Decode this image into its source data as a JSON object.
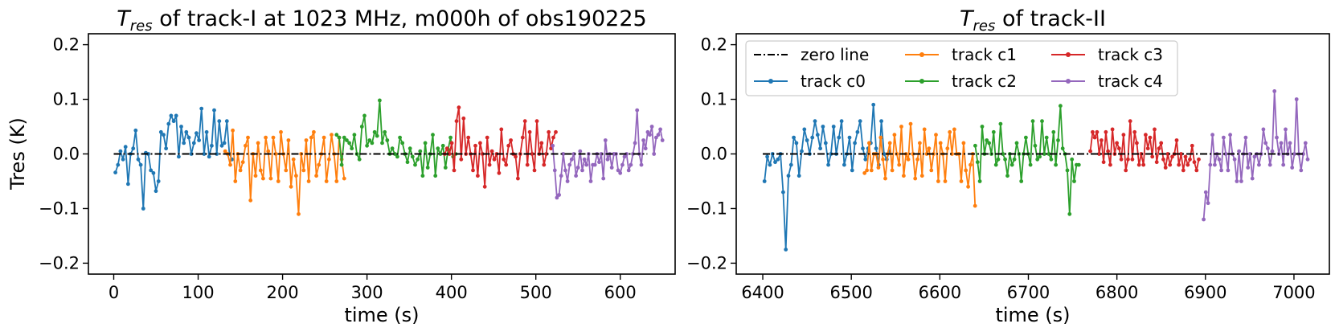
{
  "chart_data": [
    {
      "type": "line",
      "title_symbol": "T",
      "title_sub": "res",
      "title_rest": " of track-I at 1023 MHz, m000h of obs190225",
      "xlabel": "time (s)",
      "ylabel": "Tres (K)",
      "xlim": [
        -30,
        665
      ],
      "ylim": [
        -0.22,
        0.22
      ],
      "xticks": [
        0,
        100,
        200,
        300,
        400,
        500,
        600
      ],
      "xtick_labels": [
        "0",
        "100",
        "200",
        "300",
        "400",
        "500",
        "600"
      ],
      "yticks": [
        -0.2,
        -0.1,
        0.0,
        0.1,
        0.2
      ],
      "ytick_labels": [
        "−0.2",
        "−0.1",
        "0.0",
        "0.1",
        "0.2"
      ],
      "zero_line": {
        "name": "zero line",
        "x": [
          0,
          632
        ],
        "y": [
          0,
          0
        ]
      },
      "series": [
        {
          "name": "track c0",
          "color": "#1f77b4",
          "x0": 2,
          "dx": 3,
          "y": [
            -0.034,
            -0.02,
            0.005,
            -0.01,
            0.013,
            -0.055,
            0.0,
            0.01,
            0.043,
            -0.01,
            -0.02,
            -0.1,
            0.002,
            0.0,
            -0.03,
            -0.035,
            -0.068,
            -0.05,
            0.04,
            0.035,
            0.01,
            0.055,
            0.07,
            0.06,
            0.07,
            -0.005,
            0.05,
            0.02,
            0.04,
            0.03,
            0.0,
            0.02,
            0.038,
            0.025,
            0.083,
            0.0,
            0.04,
            -0.005,
            0.015,
            0.08,
            0.0,
            0.06,
            0.015,
            0.02,
            0.06,
            0.0,
            -0.01
          ]
        },
        {
          "name": "track c1",
          "color": "#ff7f0e",
          "x0": 132,
          "dx": 3,
          "y": [
            0.005,
            0.0,
            -0.02,
            0.043,
            -0.05,
            0.0,
            -0.03,
            -0.015,
            0.015,
            0.03,
            -0.085,
            0.0,
            -0.04,
            0.02,
            -0.03,
            -0.045,
            0.03,
            0.005,
            -0.045,
            0.03,
            0.0,
            -0.05,
            0.04,
            0.0,
            -0.03,
            0.025,
            -0.06,
            -0.01,
            -0.04,
            -0.11,
            0.0,
            -0.03,
            0.025,
            -0.05,
            0.03,
            0.04,
            -0.04,
            -0.02,
            0.0,
            0.03,
            -0.05,
            -0.01,
            0.035,
            0.0,
            -0.05,
            0.03,
            -0.01,
            -0.045
          ]
        },
        {
          "name": "track c2",
          "color": "#2ca02c",
          "x0": 264,
          "dx": 3,
          "y": [
            0.035,
            0.03,
            -0.02,
            0.03,
            0.025,
            0.02,
            0.01,
            0.035,
            0.0,
            -0.01,
            0.05,
            0.07,
            0.015,
            0.025,
            0.02,
            0.04,
            0.033,
            0.098,
            0.02,
            0.04,
            0.025,
            0.0,
            0.01,
            0.0,
            -0.005,
            0.03,
            0.02,
            0.0,
            -0.015,
            0.01,
            -0.005,
            -0.02,
            -0.01,
            0.005,
            -0.04,
            0.02,
            -0.025,
            0.0,
            0.035,
            -0.04,
            0.01,
            0.0,
            0.015,
            -0.025,
            0.008,
            0.03,
            -0.005,
            0.0
          ]
        },
        {
          "name": "track c3",
          "color": "#d62728",
          "x0": 392,
          "dx": 2.8,
          "y": [
            0.0,
            0.01,
            0.0,
            0.02,
            -0.03,
            0.06,
            0.085,
            -0.01,
            0.065,
            0.0,
            0.03,
            0.0,
            -0.03,
            0.015,
            -0.04,
            0.02,
            0.0,
            -0.06,
            0.03,
            -0.02,
            0.005,
            -0.01,
            0.0,
            -0.035,
            0.045,
            -0.01,
            -0.02,
            0.015,
            0.025,
            0.0,
            -0.005,
            -0.045,
            0.0,
            0.03,
            0.06,
            -0.02,
            0.04,
            0.0,
            -0.03,
            0.06,
            0.0,
            0.02,
            -0.02,
            0.0,
            0.04,
            0.01,
            0.03,
            0.04
          ]
        },
        {
          "name": "track c4",
          "color": "#9467bd",
          "x0": 520,
          "dx": 2.5,
          "y": [
            0.015,
            -0.03,
            -0.08,
            -0.075,
            -0.04,
            0.0,
            -0.03,
            -0.05,
            -0.02,
            -0.01,
            0.0,
            -0.04,
            -0.025,
            0.005,
            -0.03,
            -0.01,
            -0.02,
            0.0,
            -0.05,
            -0.02,
            -0.02,
            0.0,
            -0.015,
            0.0,
            -0.045,
            0.025,
            -0.01,
            0.0,
            -0.025,
            0.0,
            0.0,
            -0.03,
            -0.035,
            -0.02,
            -0.005,
            0.0,
            -0.03,
            -0.02,
            0.0,
            0.02,
            0.08,
            0.0,
            -0.02,
            0.025,
            0.01,
            0.04,
            0.035,
            0.05,
            0.0,
            0.03,
            0.035,
            0.045,
            0.025
          ]
        }
      ]
    },
    {
      "type": "line",
      "title_symbol": "T",
      "title_sub": "res",
      "title_rest": " of track-II",
      "xlabel": "time (s)",
      "ylabel": "",
      "xlim": [
        6370,
        7040
      ],
      "ylim": [
        -0.22,
        0.22
      ],
      "xticks": [
        6400,
        6500,
        6600,
        6700,
        6800,
        6900,
        7000
      ],
      "xtick_labels": [
        "6400",
        "6500",
        "6600",
        "6700",
        "6800",
        "6900",
        "7000"
      ],
      "yticks": [
        -0.2,
        -0.1,
        0.0,
        0.1,
        0.2
      ],
      "ytick_labels": [
        "−0.2",
        "−0.1",
        "0.0",
        "0.1",
        "0.2"
      ],
      "zero_line": {
        "name": "zero line",
        "x": [
          6400,
          7010
        ],
        "y": [
          0,
          0
        ]
      },
      "legend": {
        "location": "upper-left",
        "columns": 3
      },
      "series": [
        {
          "name": "track c0",
          "color": "#1f77b4",
          "x0": 6402,
          "dx": 3,
          "y": [
            -0.05,
            -0.005,
            -0.02,
            0.0,
            -0.015,
            -0.01,
            0.0,
            -0.07,
            -0.175,
            -0.04,
            -0.02,
            0.03,
            0.02,
            -0.04,
            0.005,
            0.045,
            0.025,
            0.0,
            0.03,
            0.06,
            0.035,
            0.01,
            0.05,
            0.02,
            -0.02,
            0.0,
            0.05,
            0.0,
            0.03,
            0.06,
            -0.02,
            0.0,
            0.03,
            -0.03,
            0.02,
            0.04,
            0.06,
            0.01,
            -0.01,
            0.01,
            0.02,
            0.09,
            0.01,
            -0.02,
            0.06,
            0.0,
            -0.01,
            0.005
          ]
        },
        {
          "name": "track c1",
          "color": "#ff7f0e",
          "x0": 6515,
          "dx": 2.6,
          "y": [
            -0.035,
            -0.03,
            0.02,
            -0.03,
            0.0,
            0.0,
            -0.025,
            0.03,
            -0.01,
            -0.045,
            0.0,
            0.02,
            -0.03,
            0.035,
            0.0,
            -0.02,
            0.05,
            -0.04,
            0.0,
            -0.01,
            0.055,
            0.0,
            -0.045,
            -0.01,
            0.02,
            -0.04,
            0.045,
            0.0,
            0.01,
            -0.03,
            0.0,
            0.035,
            -0.05,
            0.02,
            0.0,
            -0.05,
            0.01,
            0.04,
            0.0,
            0.045,
            0.0,
            0.0,
            -0.05,
            0.02,
            -0.03,
            -0.06,
            -0.02,
            0.0,
            -0.095
          ]
        },
        {
          "name": "track c2",
          "color": "#2ca02c",
          "x0": 6640,
          "dx": 2.6,
          "y": [
            0.015,
            -0.015,
            -0.05,
            0.05,
            0.0,
            0.025,
            0.02,
            0.0,
            0.04,
            -0.02,
            -0.01,
            0.055,
            0.0,
            -0.01,
            -0.04,
            0.0,
            -0.02,
            -0.01,
            0.02,
            0.0,
            -0.05,
            0.0,
            0.03,
            0.0,
            -0.02,
            0.06,
            0.015,
            -0.01,
            -0.005,
            0.06,
            0.0,
            0.03,
            0.0,
            -0.01,
            0.04,
            -0.02,
            0.025,
            0.088,
            0.01,
            0.0,
            -0.03,
            -0.11,
            -0.01,
            -0.05,
            -0.02,
            -0.02
          ]
        },
        {
          "name": "track c3",
          "color": "#d62728",
          "x0": 6770,
          "dx": 2.5,
          "y": [
            0.005,
            0.04,
            0.03,
            0.04,
            0.0,
            0.025,
            -0.015,
            0.04,
            0.005,
            -0.02,
            0.045,
            0.0,
            0.02,
            0.01,
            -0.01,
            0.035,
            -0.03,
            -0.01,
            0.06,
            -0.01,
            0.04,
            0.02,
            -0.02,
            0.0,
            -0.02,
            0.035,
            0.01,
            0.03,
            -0.005,
            0.045,
            -0.015,
            0.01,
            0.02,
            -0.01,
            -0.025,
            0.0,
            -0.02,
            -0.005,
            0.0,
            0.025,
            -0.02,
            0.0,
            -0.03,
            -0.005,
            -0.02,
            -0.01,
            0.015,
            -0.015,
            -0.03,
            -0.01
          ]
        },
        {
          "name": "track c4",
          "color": "#9467bd",
          "x0": 6898,
          "dx": 2.5,
          "y": [
            -0.12,
            -0.07,
            -0.09,
            -0.02,
            0.035,
            -0.02,
            0.0,
            -0.01,
            -0.03,
            0.03,
            0.0,
            -0.03,
            0.035,
            0.0,
            -0.01,
            -0.05,
            0.005,
            -0.05,
            0.0,
            0.03,
            -0.025,
            0.0,
            -0.045,
            -0.005,
            0.0,
            -0.02,
            0.0,
            0.045,
            0.02,
            0.01,
            -0.02,
            0.005,
            0.115,
            0.03,
            0.0,
            0.02,
            -0.02,
            0.045,
            0.0,
            0.02,
            -0.025,
            0.0,
            0.1,
            0.0,
            -0.03,
            0.0,
            0.02,
            -0.01
          ]
        }
      ]
    }
  ]
}
